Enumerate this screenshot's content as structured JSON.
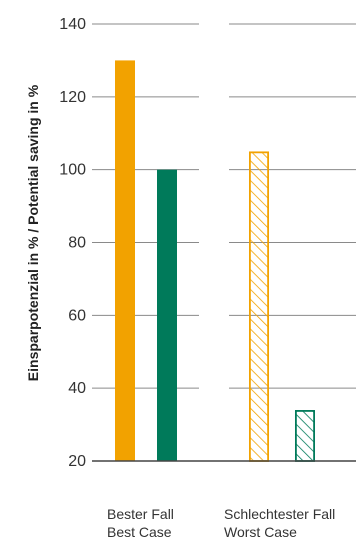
{
  "chart_data": {
    "type": "bar",
    "ylabel": "Einsparpotenzial in % / Potential saving in %",
    "ylim": [
      20,
      140
    ],
    "yticks": [
      20,
      40,
      60,
      80,
      100,
      120,
      140
    ],
    "categories": [
      {
        "line1": "Bester Fall",
        "line2": "Best Case"
      },
      {
        "line1": "Schlechtester Fall",
        "line2": "Worst Case"
      }
    ],
    "series": [
      {
        "values": [
          130,
          105
        ],
        "color": "#F2A200"
      },
      {
        "values": [
          100,
          34
        ],
        "color": "#007A5A"
      }
    ],
    "hatched_categories": [
      1
    ],
    "grid": true,
    "legend": "none"
  }
}
